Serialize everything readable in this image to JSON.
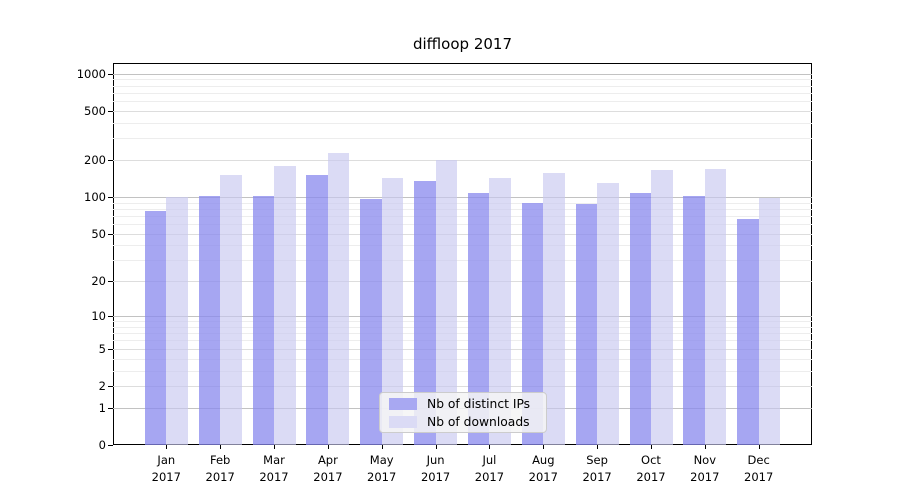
{
  "title": "diffloop 2017",
  "colors": {
    "ips_bar": "rgba(136,136,238,0.75)",
    "downloads_bar": "rgba(200,200,240,0.65)",
    "ips_swatch": "#a8a8f2",
    "downloads_swatch": "#dbdbf5",
    "grid_major": "#c2c2c2",
    "grid_mid": "#dddddd",
    "grid_minor": "#ededed",
    "axis": "#000000"
  },
  "chart_data": {
    "type": "bar",
    "title": "diffloop 2017",
    "categories": [
      "Jan",
      "Feb",
      "Mar",
      "Apr",
      "May",
      "Jun",
      "Jul",
      "Aug",
      "Sep",
      "Oct",
      "Nov",
      "Dec"
    ],
    "year_label": "2017",
    "series": [
      {
        "name": "Nb of distinct IPs",
        "values": [
          77,
          101,
          101,
          151,
          97,
          135,
          108,
          89,
          88,
          108,
          101,
          66
        ]
      },
      {
        "name": "Nb of downloads",
        "values": [
          100,
          152,
          178,
          228,
          143,
          198,
          142,
          157,
          131,
          166,
          170,
          98
        ]
      }
    ],
    "yscale": "log1p",
    "yticks": [
      0,
      1,
      2,
      5,
      10,
      20,
      50,
      100,
      200,
      500,
      1000
    ],
    "minor_gridlines": [
      3,
      4,
      6,
      7,
      8,
      9,
      30,
      40,
      60,
      70,
      80,
      90,
      300,
      400,
      600,
      700,
      800,
      900
    ],
    "mid_gridlines": [
      2,
      5,
      20,
      50,
      200,
      500
    ],
    "major_gridlines": [
      1,
      10,
      100,
      1000
    ],
    "ylim": [
      0,
      1225
    ],
    "grid": true,
    "legend_position": "lower center"
  },
  "legend": {
    "items": [
      {
        "label": "Nb of distinct IPs"
      },
      {
        "label": "Nb of downloads"
      }
    ]
  }
}
